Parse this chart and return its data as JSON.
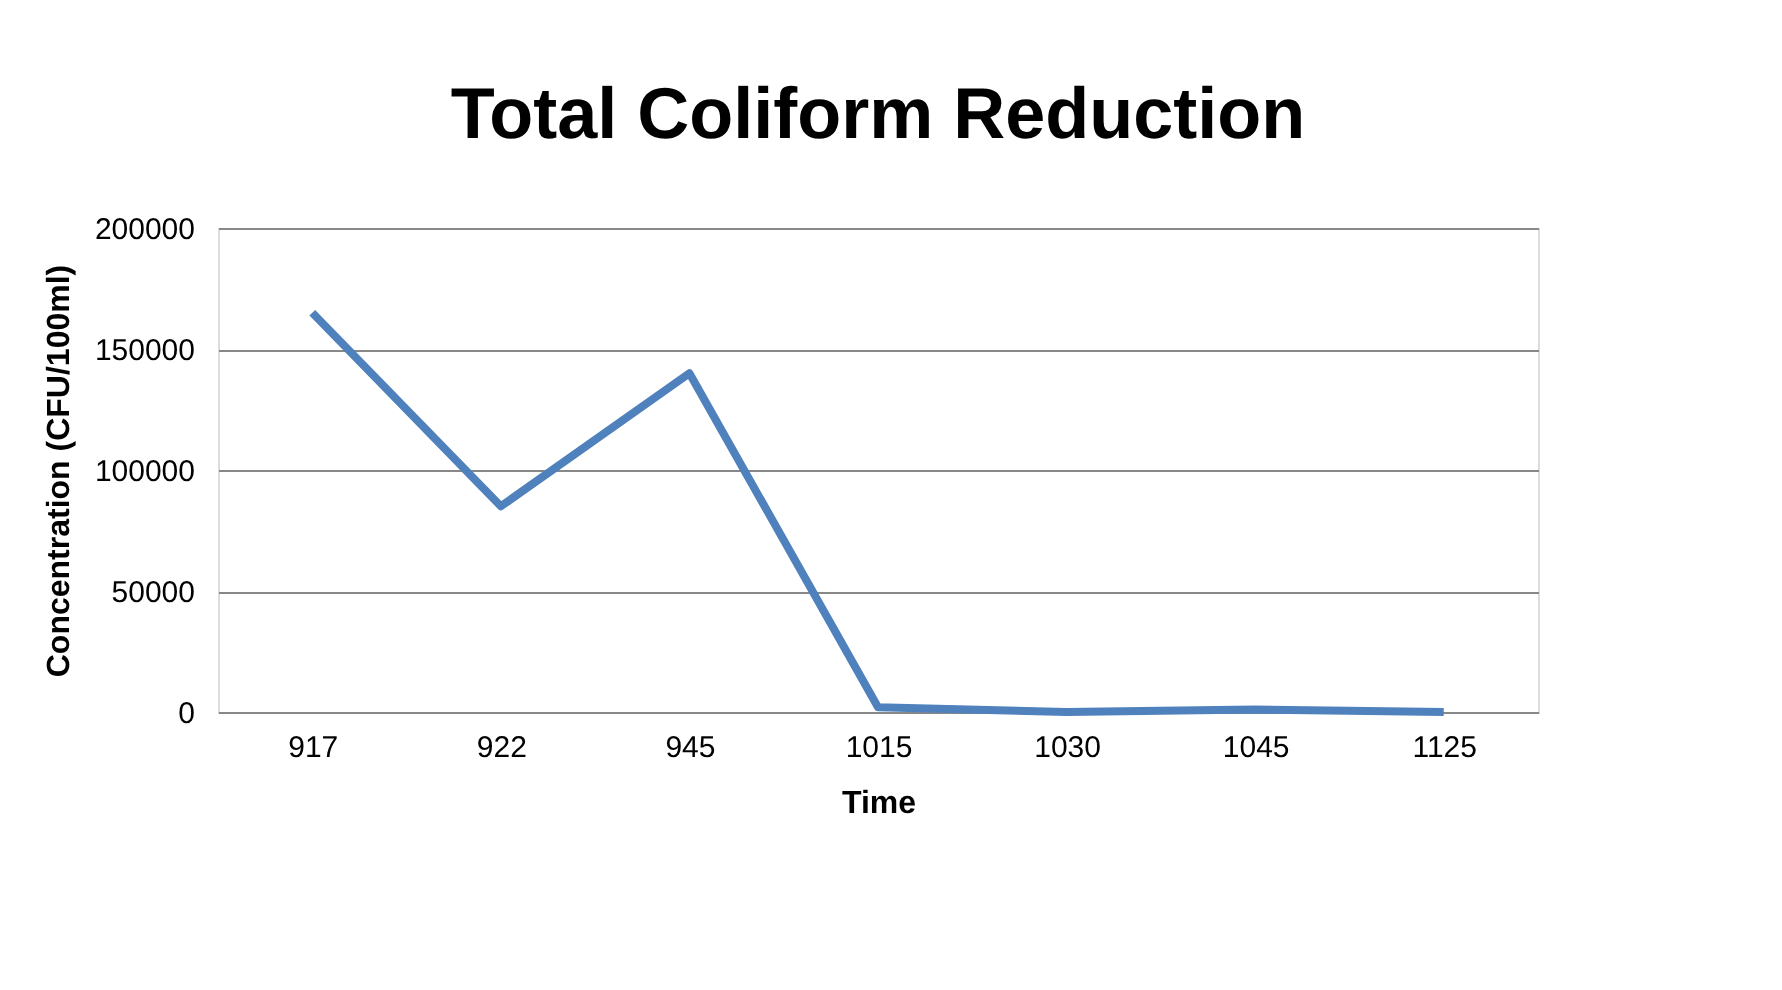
{
  "chart_data": {
    "type": "line",
    "title": "Total Coliform Reduction",
    "xlabel": "Time",
    "ylabel": "Concentration (CFU/100ml)",
    "categories": [
      "917",
      "922",
      "945",
      "1015",
      "1030",
      "1045",
      "1125"
    ],
    "series": [
      {
        "color": "#4f81bd",
        "values": [
          165000,
          85000,
          140000,
          2000,
          0,
          1000,
          0
        ]
      }
    ],
    "ylim": [
      0,
      200000
    ],
    "yticks": [
      0,
      50000,
      100000,
      150000,
      200000
    ],
    "grid": "y",
    "marker": "none",
    "line_style": "solid"
  }
}
